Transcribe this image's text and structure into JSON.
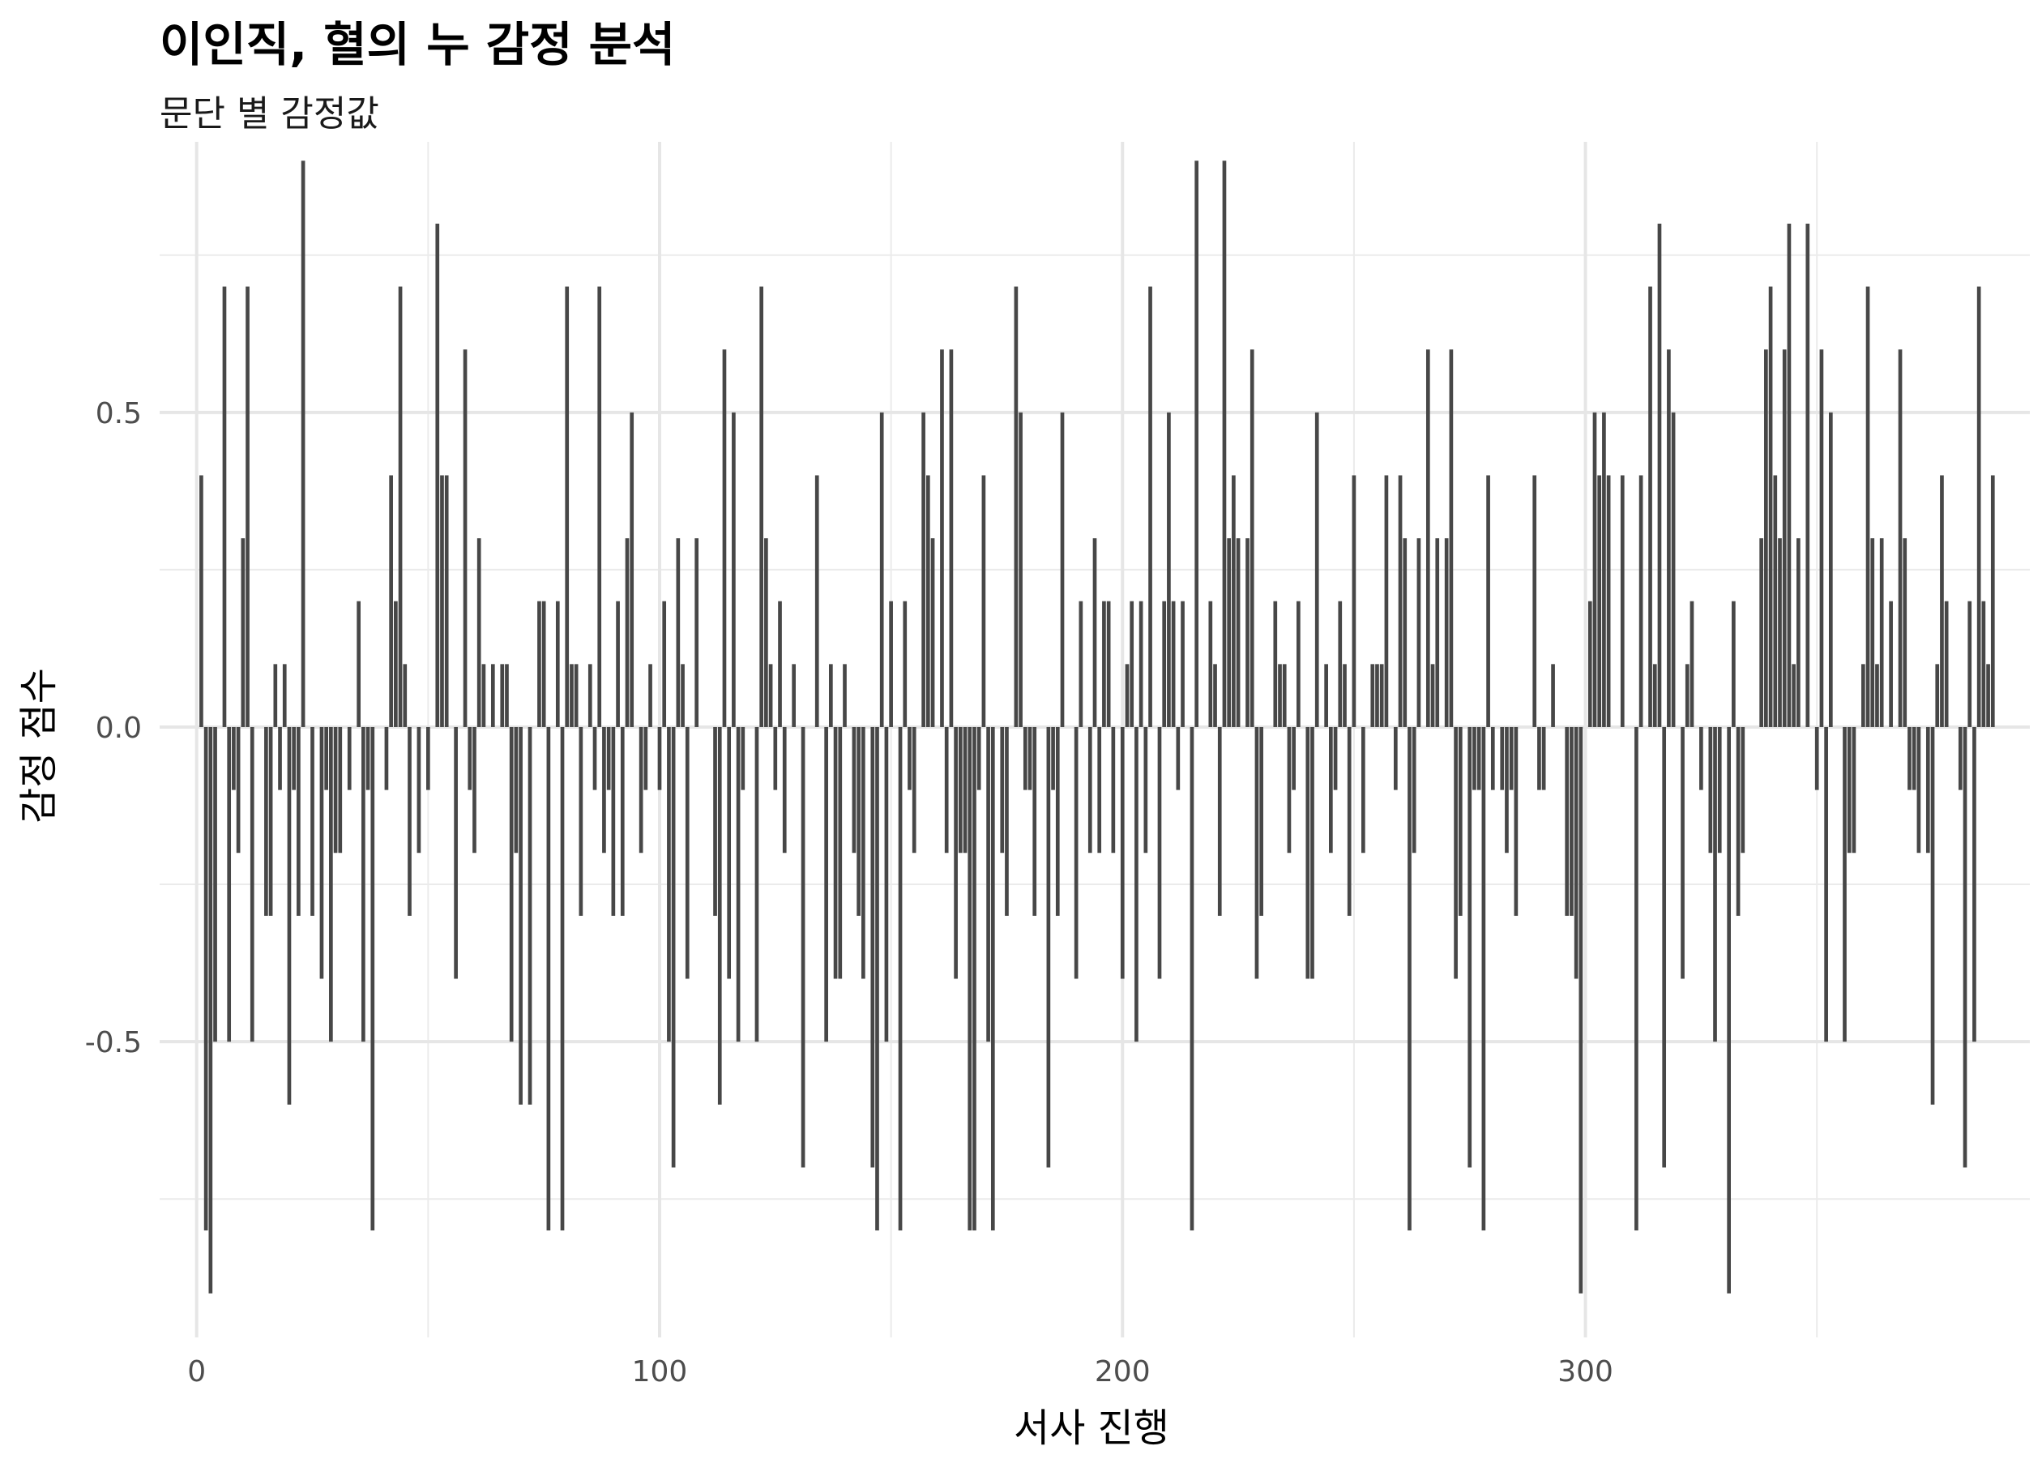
{
  "chart_data": {
    "type": "bar",
    "title": "이인직, 혈의 누 감정 분석",
    "subtitle": "문단 별 감정값",
    "xlabel": "서사 진행",
    "ylabel": "감정 점수",
    "xlim": [
      -8,
      396
    ],
    "ylim": [
      -0.97,
      0.93
    ],
    "x_ticks": [
      0,
      100,
      200,
      300
    ],
    "y_ticks": [
      -0.5,
      0.0,
      0.5
    ],
    "x_tick_labels": [
      "0",
      "100",
      "200",
      "300"
    ],
    "y_tick_labels": [
      "-0.5",
      "0.0",
      "0.5"
    ],
    "grid": true,
    "bar_color": "#474747",
    "x_start": 1,
    "values": [
      0.4,
      -0.8,
      -0.9,
      -0.5,
      0,
      0.7,
      -0.5,
      -0.1,
      -0.2,
      0.3,
      0.7,
      -0.5,
      0,
      0,
      -0.3,
      -0.3,
      0.1,
      -0.1,
      0.1,
      -0.6,
      -0.1,
      -0.3,
      0.9,
      0,
      -0.3,
      0,
      -0.4,
      -0.1,
      -0.5,
      -0.2,
      -0.2,
      0,
      -0.1,
      0,
      0.2,
      -0.5,
      -0.1,
      -0.8,
      0,
      0,
      -0.1,
      0.4,
      0.2,
      0.7,
      0.1,
      -0.3,
      0,
      -0.2,
      0,
      -0.1,
      0,
      0.8,
      0.4,
      0.4,
      0,
      -0.4,
      0,
      0.6,
      -0.1,
      -0.2,
      0.3,
      0.1,
      0,
      0.1,
      0,
      0.1,
      0.1,
      -0.5,
      -0.2,
      -0.6,
      0,
      -0.6,
      0,
      0.2,
      0.2,
      -0.8,
      0,
      0.2,
      -0.8,
      0.7,
      0.1,
      0.1,
      -0.3,
      0,
      0.1,
      -0.1,
      0.7,
      -0.2,
      -0.1,
      -0.3,
      0.2,
      -0.3,
      0.3,
      0.5,
      0,
      -0.2,
      -0.1,
      0.1,
      0,
      -0.1,
      0.2,
      -0.5,
      -0.7,
      0.3,
      0.1,
      -0.4,
      0,
      0.3,
      0,
      0,
      0,
      -0.3,
      -0.6,
      0.6,
      -0.4,
      0.5,
      -0.5,
      -0.1,
      0,
      0,
      -0.5,
      0.7,
      0.3,
      0.1,
      -0.1,
      0.2,
      -0.2,
      0,
      0.1,
      0,
      -0.7,
      0,
      0,
      0.4,
      0,
      -0.5,
      0.1,
      -0.4,
      -0.4,
      0.1,
      0,
      -0.2,
      -0.3,
      -0.4,
      0,
      -0.7,
      -0.8,
      0.5,
      -0.5,
      0.2,
      0,
      -0.8,
      0.2,
      -0.1,
      -0.2,
      0,
      0.5,
      0.4,
      0.3,
      0,
      0.6,
      -0.2,
      0.6,
      -0.4,
      -0.2,
      -0.2,
      -0.8,
      -0.8,
      -0.1,
      0.4,
      -0.5,
      -0.8,
      0,
      -0.2,
      -0.3,
      0,
      0.7,
      0.5,
      -0.1,
      -0.1,
      -0.3,
      0,
      0,
      -0.7,
      -0.1,
      -0.3,
      0.5,
      0,
      0,
      -0.4,
      0.2,
      0,
      -0.2,
      0.3,
      -0.2,
      0.2,
      0.2,
      -0.2,
      0,
      -0.4,
      0.1,
      0.2,
      -0.5,
      0.2,
      -0.2,
      0.7,
      0,
      -0.4,
      0.2,
      0.5,
      0.2,
      -0.1,
      0.2,
      0,
      -0.8,
      0.9,
      0,
      0,
      0.2,
      0.1,
      -0.3,
      0.9,
      0.3,
      0.4,
      0.3,
      0,
      0.3,
      0.6,
      -0.4,
      -0.3,
      0,
      0,
      0.2,
      0.1,
      0.1,
      -0.2,
      -0.1,
      0.2,
      0,
      -0.4,
      -0.4,
      0.5,
      0,
      0.1,
      -0.2,
      -0.1,
      0.2,
      0.1,
      -0.3,
      0.4,
      0,
      -0.2,
      0,
      0.1,
      0.1,
      0.1,
      0.4,
      0,
      -0.1,
      0.4,
      0.3,
      -0.8,
      -0.2,
      0.3,
      0,
      0.6,
      0.1,
      0.3,
      0,
      0.3,
      0.6,
      -0.4,
      -0.3,
      0,
      -0.7,
      -0.1,
      -0.1,
      -0.8,
      0.4,
      -0.1,
      0,
      -0.1,
      -0.2,
      -0.1,
      -0.3,
      0,
      0,
      0,
      0.4,
      -0.1,
      -0.1,
      0,
      0.1,
      0,
      0,
      -0.3,
      -0.3,
      -0.4,
      -0.9,
      0,
      0.2,
      0.5,
      0.4,
      0.5,
      0.4,
      0,
      0,
      0.4,
      0,
      0,
      -0.8,
      0.4,
      0,
      0.7,
      0.1,
      0.8,
      -0.7,
      0.6,
      0.5,
      0,
      -0.4,
      0.1,
      0.2,
      0,
      -0.1,
      0,
      -0.2,
      -0.5,
      -0.2,
      0,
      -0.9,
      0.2,
      -0.3,
      -0.2,
      0,
      0,
      0,
      0.3,
      0.6,
      0.7,
      0.4,
      0.3,
      0.6,
      0.8,
      0.1,
      0.3,
      0,
      0.8,
      0,
      -0.1,
      0.6,
      -0.5,
      0.5,
      0,
      0,
      -0.5,
      -0.2,
      -0.2,
      0,
      0.1,
      0.7,
      0.3,
      0.1,
      0.3,
      0,
      0.2,
      0,
      0.6,
      0.3,
      -0.1,
      -0.1,
      -0.2,
      0,
      -0.2,
      -0.6,
      0.1,
      0.4,
      0.2,
      0,
      0,
      -0.1,
      -0.7,
      0.2,
      -0.5,
      0.7,
      0.2,
      0.1,
      0.4
    ]
  }
}
